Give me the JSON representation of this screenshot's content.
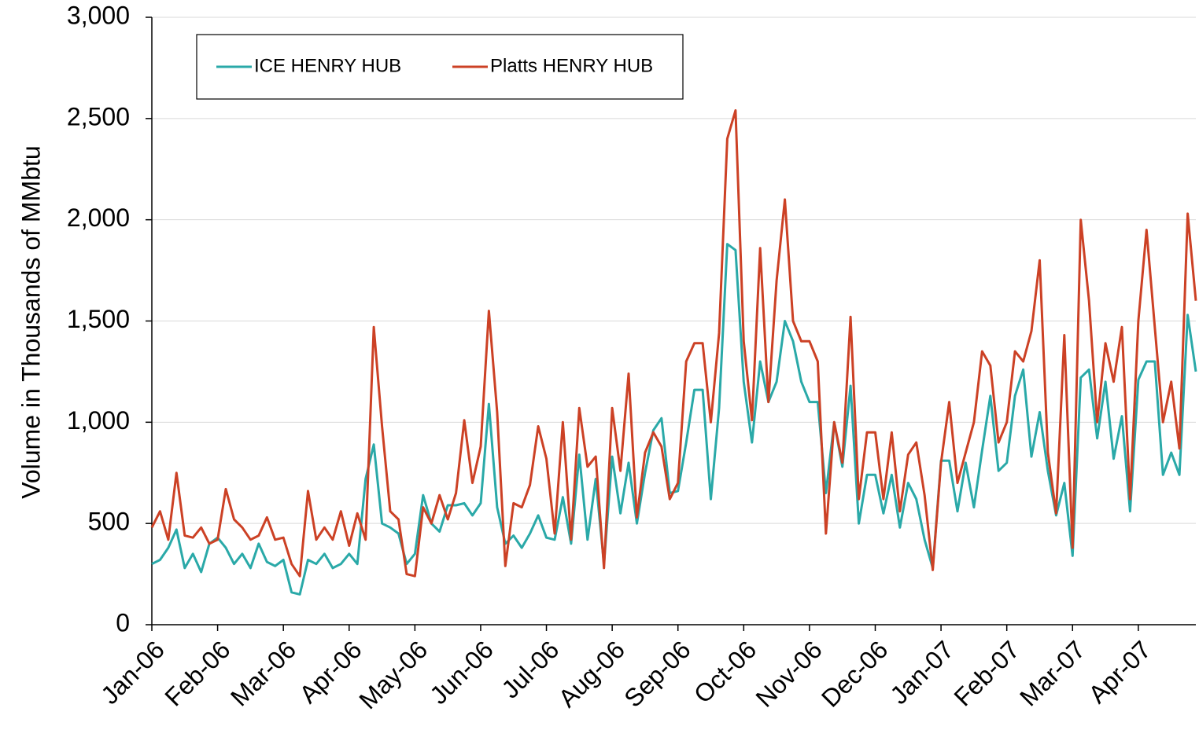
{
  "chart_data": {
    "type": "line",
    "y_label": "Volume in Thousands of MMbtu",
    "categories": [
      "Jan-06",
      null,
      null,
      null,
      null,
      null,
      null,
      null,
      "Feb-06",
      null,
      null,
      null,
      null,
      null,
      null,
      null,
      "Mar-06",
      null,
      null,
      null,
      null,
      null,
      null,
      null,
      "Apr-06",
      null,
      null,
      null,
      null,
      null,
      null,
      null,
      "May-06",
      null,
      null,
      null,
      null,
      null,
      null,
      null,
      "Jun-06",
      null,
      null,
      null,
      null,
      null,
      null,
      null,
      "Jul-06",
      null,
      null,
      null,
      null,
      null,
      null,
      null,
      "Aug-06",
      null,
      null,
      null,
      null,
      null,
      null,
      null,
      "Sep-06",
      null,
      null,
      null,
      null,
      null,
      null,
      null,
      "Oct-06",
      null,
      null,
      null,
      null,
      null,
      null,
      null,
      "Nov-06",
      null,
      null,
      null,
      null,
      null,
      null,
      null,
      "Dec-06",
      null,
      null,
      null,
      null,
      null,
      null,
      null,
      "Jan-07",
      null,
      null,
      null,
      null,
      null,
      null,
      null,
      "Feb-07",
      null,
      null,
      null,
      null,
      null,
      null,
      null,
      "Mar-07",
      null,
      null,
      null,
      null,
      null,
      null,
      null,
      "Apr-07",
      null,
      null,
      null,
      null,
      null,
      null,
      null
    ],
    "series": [
      {
        "name": "ICE HENRY HUB",
        "color": "#2aa9a8",
        "values": [
          300,
          320,
          380,
          470,
          280,
          350,
          260,
          400,
          430,
          380,
          300,
          350,
          280,
          400,
          310,
          290,
          320,
          160,
          150,
          320,
          300,
          350,
          280,
          300,
          350,
          300,
          720,
          890,
          500,
          480,
          450,
          300,
          350,
          640,
          500,
          460,
          590,
          590,
          600,
          540,
          600,
          1090,
          580,
          400,
          440,
          380,
          450,
          540,
          430,
          420,
          630,
          400,
          840,
          420,
          720,
          300,
          830,
          550,
          800,
          500,
          750,
          960,
          1020,
          650,
          660,
          900,
          1160,
          1160,
          620,
          1070,
          1880,
          1850,
          1200,
          900,
          1300,
          1100,
          1200,
          1500,
          1400,
          1200,
          1100,
          1100,
          650,
          1000,
          780,
          1180,
          500,
          740,
          740,
          550,
          740,
          480,
          700,
          620,
          420,
          280,
          810,
          810,
          560,
          800,
          580,
          860,
          1130,
          760,
          800,
          1130,
          1260,
          830,
          1050,
          760,
          540,
          700,
          340,
          1220,
          1260,
          920,
          1200,
          820,
          1030,
          560,
          1210,
          1300,
          1300,
          740,
          850,
          740,
          1530,
          1250
        ]
      },
      {
        "name": "Platts HENRY HUB",
        "color": "#cc4125",
        "values": [
          480,
          560,
          420,
          750,
          440,
          430,
          480,
          400,
          420,
          670,
          520,
          480,
          420,
          440,
          530,
          420,
          430,
          300,
          240,
          660,
          420,
          480,
          420,
          560,
          390,
          550,
          420,
          1470,
          980,
          560,
          520,
          250,
          240,
          580,
          500,
          640,
          520,
          650,
          1010,
          700,
          880,
          1550,
          1050,
          290,
          600,
          580,
          690,
          980,
          820,
          450,
          1000,
          420,
          1070,
          780,
          830,
          280,
          1070,
          760,
          1240,
          530,
          850,
          950,
          880,
          620,
          700,
          1300,
          1390,
          1390,
          1000,
          1440,
          2400,
          2540,
          1400,
          1010,
          1860,
          1100,
          1700,
          2100,
          1500,
          1400,
          1400,
          1300,
          450,
          1000,
          800,
          1520,
          620,
          950,
          950,
          620,
          950,
          560,
          840,
          900,
          640,
          270,
          800,
          1100,
          700,
          850,
          1000,
          1350,
          1280,
          900,
          1000,
          1350,
          1300,
          1450,
          1800,
          850,
          550,
          1430,
          380,
          2000,
          1600,
          1000,
          1390,
          1200,
          1470,
          620,
          1500,
          1950,
          1470,
          1000,
          1200,
          870,
          2030,
          1600
        ]
      }
    ],
    "ylim": [
      0,
      3000
    ],
    "yticks": [
      0,
      500,
      {
        "value": 1000,
        "label": "1,000"
      },
      {
        "value": 1500,
        "label": "1,500"
      },
      {
        "value": 2000,
        "label": "2,000"
      },
      {
        "value": 2500,
        "label": "2,500"
      },
      {
        "value": 3000,
        "label": "3,000"
      }
    ],
    "grid": true,
    "legend": "upper left"
  }
}
